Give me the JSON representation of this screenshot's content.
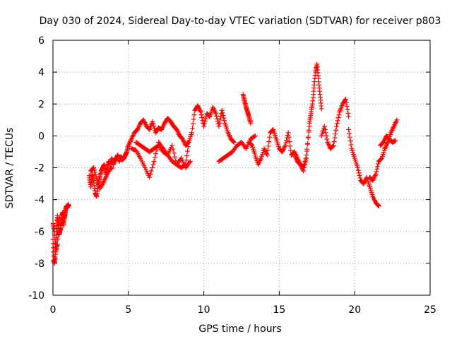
{
  "chart_data": {
    "type": "scatter",
    "title": "Day 030 of 2024, Sidereal Day-to-day VTEC variation (SDTVAR) for receiver p803",
    "xlabel": "GPS time / hours",
    "ylabel": "SDTVAR / TECUs",
    "xlim": [
      0,
      25
    ],
    "ylim": [
      -10,
      6
    ],
    "xticks": [
      "0",
      "5",
      "10",
      "15",
      "20",
      "25"
    ],
    "yticks": [
      "-10",
      "-8",
      "-6",
      "-4",
      "-2",
      "0",
      "2",
      "4",
      "6"
    ],
    "grid": true,
    "marker": "plus",
    "color": "#ff0000",
    "series": [
      {
        "name": "p803",
        "x": [
          0.0,
          0.05,
          0.1,
          0.15,
          0.2,
          0.25,
          0.3,
          0.35,
          0.4,
          0.45,
          0.5,
          0.55,
          0.6,
          0.65,
          0.7,
          0.75,
          0.8,
          0.85,
          0.9,
          0.95,
          1.0,
          1.05,
          0.0,
          0.1,
          0.2,
          0.3,
          0.4,
          2.4,
          2.5,
          2.6,
          2.7,
          2.8,
          2.9,
          3.0,
          3.1,
          3.2,
          3.3,
          3.4,
          3.5,
          3.6,
          3.7,
          3.8,
          3.9,
          4.0,
          4.1,
          4.2,
          4.3,
          4.4,
          4.5,
          4.6,
          4.7,
          4.8,
          4.9,
          5.0,
          2.5,
          2.7,
          2.9,
          3.1,
          3.3,
          3.5,
          3.7,
          3.9,
          5.0,
          5.2,
          5.4,
          5.6,
          5.8,
          6.0,
          6.2,
          6.4,
          6.6,
          6.8,
          7.0,
          7.2,
          7.4,
          7.6,
          7.8,
          8.0,
          8.2,
          8.4,
          8.6,
          8.8,
          9.0,
          5.2,
          5.5,
          5.8,
          6.1,
          6.4,
          6.7,
          7.0,
          7.3,
          7.6,
          7.9,
          8.2,
          8.5,
          8.8,
          9.1,
          5.5,
          5.8,
          6.1,
          6.4,
          6.7,
          7.0,
          7.3,
          7.6,
          7.9,
          8.2,
          8.5,
          8.8,
          9.0,
          9.2,
          9.4,
          9.6,
          9.8,
          10.0,
          10.2,
          10.4,
          10.6,
          10.8,
          11.0,
          11.2,
          11.4,
          11.6,
          11.8,
          12.0,
          11.0,
          11.3,
          11.6,
          11.9,
          12.2,
          12.5,
          12.8,
          13.1,
          13.4,
          12.6,
          12.7,
          12.8,
          12.9,
          13.0,
          13.1,
          13.0,
          13.2,
          13.4,
          13.6,
          13.8,
          14.0,
          14.2,
          14.4,
          14.6,
          14.8,
          15.0,
          15.2,
          15.4,
          15.6,
          15.8,
          16.0,
          16.2,
          16.4,
          16.6,
          16.8,
          17.0,
          16.0,
          16.2,
          16.4,
          16.6,
          16.8,
          17.0,
          17.1,
          17.2,
          17.3,
          17.4,
          17.5,
          17.6,
          17.7,
          17.8,
          17.8,
          18.0,
          18.2,
          18.4,
          18.6,
          18.8,
          19.0,
          19.2,
          19.4,
          19.6,
          19.6,
          19.8,
          20.0,
          20.2,
          20.4,
          20.6,
          20.8,
          21.0,
          21.2,
          21.4,
          21.6,
          21.0,
          21.2,
          21.4,
          21.6,
          21.8,
          22.0,
          22.2,
          22.4,
          22.6,
          22.8,
          21.7,
          21.9,
          22.1,
          22.3,
          22.5,
          22.7
        ],
        "y": [
          -6.5,
          -7.8,
          -8.0,
          -7.6,
          -6.8,
          -5.8,
          -5.0,
          -5.6,
          -6.2,
          -6.0,
          -5.8,
          -5.4,
          -5.0,
          -4.8,
          -5.6,
          -5.2,
          -4.9,
          -4.6,
          -4.4,
          -4.5,
          -4.3,
          -4.4,
          -5.5,
          -6.0,
          -7.2,
          -6.8,
          -5.2,
          -2.5,
          -3.2,
          -2.4,
          -2.8,
          -3.6,
          -3.8,
          -3.0,
          -2.6,
          -2.2,
          -2.0,
          -1.8,
          -2.4,
          -2.0,
          -1.6,
          -1.8,
          -1.4,
          -1.8,
          -1.5,
          -1.4,
          -1.2,
          -1.6,
          -1.3,
          -1.5,
          -1.4,
          -1.2,
          -1.0,
          -0.6,
          -2.2,
          -2.0,
          -2.7,
          -3.3,
          -3.0,
          -2.6,
          -2.2,
          -2.0,
          -0.6,
          -0.2,
          0.2,
          0.4,
          0.8,
          1.0,
          0.6,
          0.4,
          0.9,
          0.2,
          0.5,
          0.4,
          0.8,
          1.1,
          0.9,
          0.6,
          0.4,
          0.0,
          -0.2,
          -0.6,
          -0.4,
          -0.8,
          -0.9,
          -1.4,
          -2.0,
          -2.6,
          -1.6,
          -0.4,
          -0.8,
          -1.2,
          -0.6,
          -1.8,
          -1.4,
          -2.0,
          -1.6,
          -0.4,
          -0.6,
          -0.8,
          -1.0,
          -0.8,
          -0.6,
          -1.0,
          -1.2,
          -1.6,
          -1.8,
          -2.0,
          -1.8,
          -0.4,
          0.2,
          1.6,
          1.9,
          1.5,
          0.6,
          1.4,
          1.2,
          1.8,
          1.4,
          0.6,
          1.6,
          0.8,
          0.2,
          -0.2,
          -0.4,
          -1.6,
          -1.4,
          -1.2,
          -1.0,
          -0.6,
          -0.4,
          -0.8,
          -0.2,
          0.0,
          2.6,
          2.2,
          1.8,
          1.5,
          1.2,
          0.8,
          -0.4,
          -0.6,
          -1.2,
          -1.8,
          -1.4,
          -0.8,
          -1.2,
          0.2,
          0.4,
          -0.2,
          -0.8,
          -1.0,
          -0.6,
          0.2,
          -1.2,
          -1.0,
          -1.4,
          -1.8,
          -2.2,
          -1.2,
          0.6,
          -1.2,
          -1.6,
          -1.8,
          -2.0,
          -1.4,
          0.8,
          1.4,
          2.0,
          3.0,
          4.0,
          4.5,
          3.6,
          2.6,
          1.7,
          0.0,
          0.6,
          -0.4,
          -0.8,
          -0.6,
          0.6,
          1.5,
          2.0,
          2.3,
          1.2,
          0.4,
          -0.8,
          -1.4,
          -2.0,
          -2.8,
          -3.0,
          -2.6,
          -3.2,
          -3.8,
          -4.2,
          -4.4,
          -2.6,
          -2.8,
          -2.4,
          -1.6,
          -1.4,
          -0.8,
          -0.4,
          0.2,
          0.6,
          1.0,
          -0.6,
          -0.4,
          0.0,
          -0.2,
          -0.4,
          -0.3
        ]
      }
    ]
  }
}
